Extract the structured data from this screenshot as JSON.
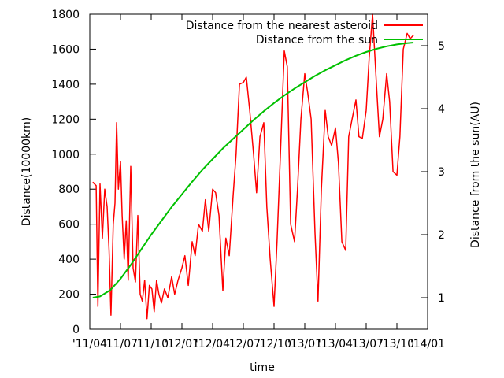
{
  "chart_data": {
    "type": "line",
    "xlabel": "time",
    "ylabel_left": "Distance(10000km)",
    "ylabel_right": "Distance from the sun(AU)",
    "x_tick_labels": [
      "'11/04",
      "'11/07",
      "'11/10",
      "'12/01",
      "'12/04",
      "'12/07",
      "'12/10",
      "'13/01",
      "'13/04",
      "'13/07",
      "'13/10",
      "'14/01"
    ],
    "x_range_months": [
      "2011-04",
      "2014-01"
    ],
    "y_left_range": [
      0,
      1800
    ],
    "y_left_ticks": [
      0,
      200,
      400,
      600,
      800,
      1000,
      1200,
      1400,
      1600,
      1800
    ],
    "y_right_range": [
      0.5,
      5.5
    ],
    "y_right_ticks": [
      1,
      2,
      3,
      4,
      5
    ],
    "grid": false,
    "legend_position": "top-right",
    "colors": {
      "asteroid": "#ff0000",
      "sun": "#00c000",
      "axes": "#000000"
    },
    "series": [
      {
        "name": "Distance from the nearest asteroid",
        "axis": "left",
        "x": [
          "2011-04-10",
          "2011-04-20",
          "2011-04-25",
          "2011-05-01",
          "2011-05-08",
          "2011-05-15",
          "2011-05-22",
          "2011-05-28",
          "2011-06-03",
          "2011-06-10",
          "2011-06-15",
          "2011-06-20",
          "2011-06-25",
          "2011-07-01",
          "2011-07-06",
          "2011-07-12",
          "2011-07-18",
          "2011-07-24",
          "2011-08-01",
          "2011-08-08",
          "2011-08-15",
          "2011-08-22",
          "2011-08-29",
          "2011-09-05",
          "2011-09-12",
          "2011-09-19",
          "2011-09-26",
          "2011-10-03",
          "2011-10-10",
          "2011-10-17",
          "2011-10-24",
          "2011-11-01",
          "2011-11-10",
          "2011-11-20",
          "2011-12-01",
          "2011-12-10",
          "2011-12-20",
          "2012-01-01",
          "2012-01-10",
          "2012-01-20",
          "2012-02-01",
          "2012-02-10",
          "2012-02-20",
          "2012-03-01",
          "2012-03-10",
          "2012-03-20",
          "2012-04-01",
          "2012-04-10",
          "2012-04-20",
          "2012-05-01",
          "2012-05-10",
          "2012-05-20",
          "2012-06-01",
          "2012-06-10",
          "2012-06-20",
          "2012-07-01",
          "2012-07-10",
          "2012-07-20",
          "2012-08-01",
          "2012-08-10",
          "2012-08-20",
          "2012-09-01",
          "2012-09-10",
          "2012-09-20",
          "2012-10-01",
          "2012-10-10",
          "2012-10-20",
          "2012-11-01",
          "2012-11-10",
          "2012-11-20",
          "2012-12-01",
          "2012-12-10",
          "2012-12-20",
          "2013-01-01",
          "2013-01-10",
          "2013-01-20",
          "2013-02-01",
          "2013-02-10",
          "2013-02-20",
          "2013-03-01",
          "2013-03-10",
          "2013-03-20",
          "2013-04-01",
          "2013-04-10",
          "2013-04-20",
          "2013-05-01",
          "2013-05-10",
          "2013-05-20",
          "2013-06-01",
          "2013-06-10",
          "2013-06-20",
          "2013-07-01",
          "2013-07-10",
          "2013-07-20",
          "2013-08-01",
          "2013-08-10",
          "2013-08-20",
          "2013-09-01",
          "2013-09-10",
          "2013-09-20",
          "2013-10-01",
          "2013-10-10",
          "2013-10-20",
          "2013-11-01",
          "2013-11-10",
          "2013-11-20"
        ],
        "y": [
          840,
          820,
          130,
          830,
          520,
          800,
          700,
          450,
          80,
          600,
          720,
          1180,
          800,
          960,
          650,
          400,
          620,
          280,
          930,
          350,
          270,
          650,
          200,
          160,
          280,
          60,
          250,
          230,
          100,
          280,
          200,
          150,
          230,
          180,
          300,
          200,
          280,
          350,
          420,
          250,
          500,
          420,
          600,
          560,
          740,
          560,
          800,
          780,
          650,
          220,
          520,
          420,
          760,
          1000,
          1400,
          1410,
          1440,
          1250,
          1000,
          780,
          1100,
          1180,
          700,
          400,
          130,
          500,
          1000,
          1590,
          1500,
          600,
          500,
          800,
          1200,
          1460,
          1350,
          1200,
          550,
          160,
          800,
          1250,
          1100,
          1050,
          1150,
          950,
          500,
          450,
          1100,
          1200,
          1310,
          1100,
          1090,
          1250,
          1550,
          1800,
          1400,
          1100,
          1200,
          1460,
          1300,
          900,
          880,
          1100,
          1600,
          1690,
          1660,
          1680
        ]
      },
      {
        "name": "Distance from the sun",
        "axis": "right",
        "x": [
          "2011-04-10",
          "2011-05-01",
          "2011-06-01",
          "2011-07-01",
          "2011-08-01",
          "2011-09-01",
          "2011-10-01",
          "2011-11-01",
          "2011-12-01",
          "2012-01-01",
          "2012-02-01",
          "2012-03-01",
          "2012-04-01",
          "2012-05-01",
          "2012-06-01",
          "2012-07-01",
          "2012-08-01",
          "2012-09-01",
          "2012-10-01",
          "2012-11-01",
          "2012-12-01",
          "2013-01-01",
          "2013-02-01",
          "2013-03-01",
          "2013-04-01",
          "2013-05-01",
          "2013-06-01",
          "2013-07-01",
          "2013-08-01",
          "2013-09-01",
          "2013-10-01",
          "2013-11-01",
          "2013-11-20"
        ],
        "y": [
          1.0,
          1.02,
          1.12,
          1.3,
          1.52,
          1.76,
          2.0,
          2.22,
          2.44,
          2.64,
          2.84,
          3.03,
          3.2,
          3.37,
          3.52,
          3.67,
          3.82,
          3.96,
          4.09,
          4.21,
          4.32,
          4.42,
          4.52,
          4.61,
          4.69,
          4.77,
          4.84,
          4.9,
          4.95,
          4.99,
          5.02,
          5.04,
          5.05
        ]
      }
    ]
  }
}
